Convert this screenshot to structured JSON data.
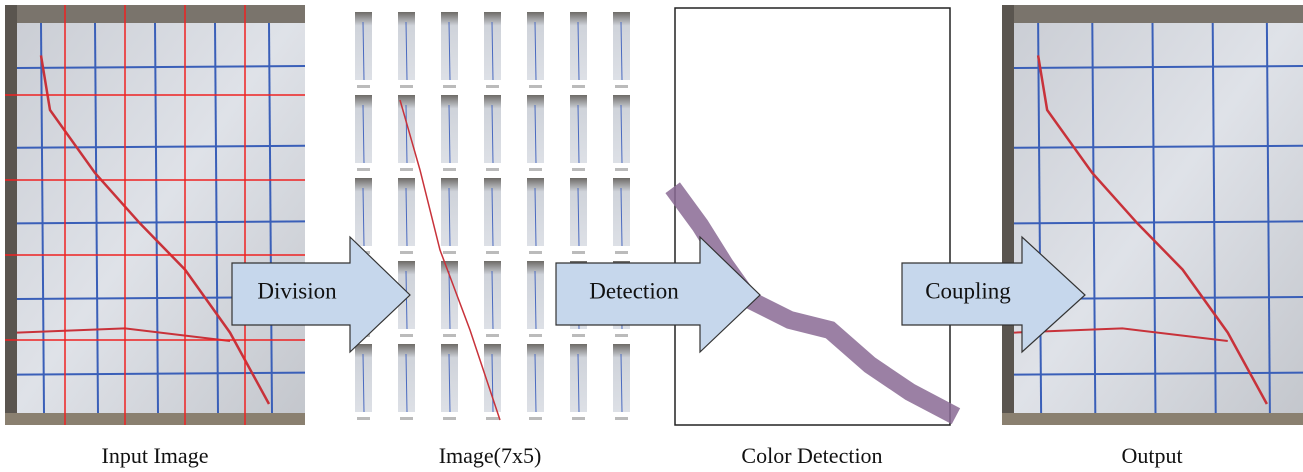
{
  "panels": [
    {
      "caption": "Input Image"
    },
    {
      "caption": "Image(7x5)"
    },
    {
      "caption": "Color Detection"
    },
    {
      "caption": "Output"
    }
  ],
  "arrows": [
    {
      "label": "Division"
    },
    {
      "label": "Detection"
    },
    {
      "label": "Coupling"
    }
  ]
}
